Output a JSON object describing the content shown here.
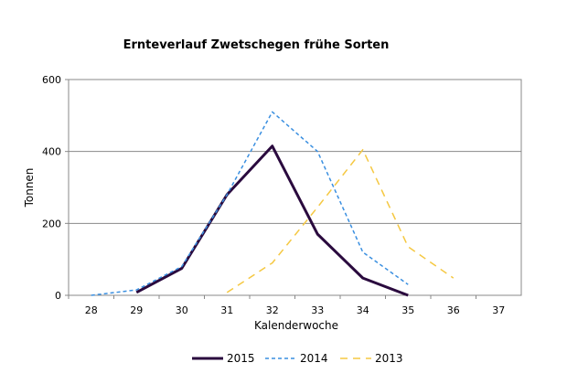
{
  "chart_data": {
    "type": "line",
    "title": "Ernteverlauf Zwetschegen frühe Sorten",
    "xlabel": "Kalenderwoche",
    "ylabel": "Tonnen",
    "categories": [
      "28",
      "29",
      "30",
      "31",
      "32",
      "33",
      "34",
      "35",
      "36",
      "37"
    ],
    "ylim": [
      0,
      600
    ],
    "yticks": [
      0,
      200,
      400,
      600
    ],
    "grid": true,
    "legend": "bottom",
    "series": [
      {
        "name": "2015",
        "color": "#2a0a3e",
        "dash": "solid",
        "values": [
          null,
          8,
          75,
          280,
          415,
          170,
          48,
          0,
          null,
          null
        ]
      },
      {
        "name": "2014",
        "color": "#3a8fe0",
        "dash": "short",
        "values": [
          0,
          15,
          80,
          280,
          510,
          400,
          120,
          30,
          null,
          null
        ]
      },
      {
        "name": "2013",
        "color": "#f5c842",
        "dash": "long",
        "values": [
          null,
          null,
          null,
          8,
          90,
          245,
          405,
          135,
          48,
          null
        ]
      }
    ]
  }
}
